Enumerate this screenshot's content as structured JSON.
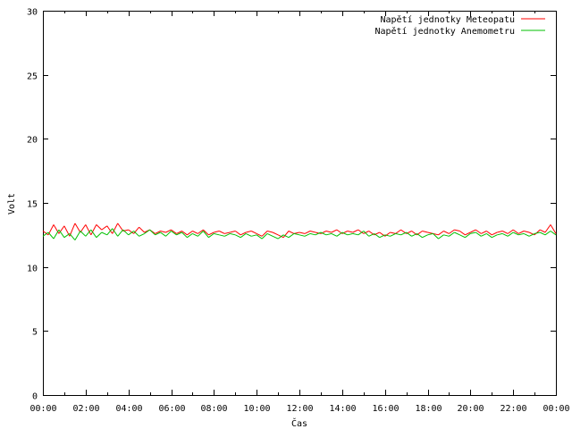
{
  "chart_data": {
    "type": "line",
    "title": "",
    "xlabel": "Čas",
    "ylabel": "Volt",
    "xlim": [
      0,
      24
    ],
    "ylim": [
      0,
      30
    ],
    "x_ticks": [
      {
        "value": 0,
        "label": "00:00"
      },
      {
        "value": 2,
        "label": "02:00"
      },
      {
        "value": 4,
        "label": "04:00"
      },
      {
        "value": 6,
        "label": "06:00"
      },
      {
        "value": 8,
        "label": "08:00"
      },
      {
        "value": 10,
        "label": "10:00"
      },
      {
        "value": 12,
        "label": "12:00"
      },
      {
        "value": 14,
        "label": "14:00"
      },
      {
        "value": 16,
        "label": "16:00"
      },
      {
        "value": 18,
        "label": "18:00"
      },
      {
        "value": 20,
        "label": "20:00"
      },
      {
        "value": 22,
        "label": "22:00"
      },
      {
        "value": 24,
        "label": "00:00"
      }
    ],
    "y_ticks": [
      {
        "value": 0,
        "label": "0"
      },
      {
        "value": 5,
        "label": "5"
      },
      {
        "value": 10,
        "label": "10"
      },
      {
        "value": 15,
        "label": "15"
      },
      {
        "value": 20,
        "label": "20"
      },
      {
        "value": 25,
        "label": "25"
      },
      {
        "value": 30,
        "label": "30"
      }
    ],
    "grid": false,
    "legend_position": "top-right",
    "x_units": "hours",
    "series": [
      {
        "name": "Napětí jednotky Meteopatu",
        "color": "#ff0000",
        "x": [
          0,
          0.25,
          0.5,
          0.75,
          1,
          1.25,
          1.5,
          1.75,
          2,
          2.25,
          2.5,
          2.75,
          3,
          3.25,
          3.5,
          3.75,
          4,
          4.25,
          4.5,
          4.75,
          5,
          5.25,
          5.5,
          5.75,
          6,
          6.25,
          6.5,
          6.75,
          7,
          7.25,
          7.5,
          7.75,
          8,
          8.25,
          8.5,
          8.75,
          9,
          9.25,
          9.5,
          9.75,
          10,
          10.25,
          10.5,
          10.75,
          11,
          11.25,
          11.5,
          11.75,
          12,
          12.25,
          12.5,
          12.75,
          13,
          13.25,
          13.5,
          13.75,
          14,
          14.25,
          14.5,
          14.75,
          15,
          15.25,
          15.5,
          15.75,
          16,
          16.25,
          16.5,
          16.75,
          17,
          17.25,
          17.5,
          17.75,
          18,
          18.25,
          18.5,
          18.75,
          19,
          19.25,
          19.5,
          19.75,
          20,
          20.25,
          20.5,
          20.75,
          21,
          21.25,
          21.5,
          21.75,
          22,
          22.25,
          22.5,
          22.75,
          23,
          23.25,
          23.5,
          23.75,
          24
        ],
        "values": [
          12.8,
          12.5,
          13.3,
          12.6,
          13.2,
          12.4,
          13.4,
          12.7,
          13.3,
          12.5,
          13.3,
          12.9,
          13.2,
          12.6,
          13.4,
          12.8,
          12.9,
          12.6,
          13.1,
          12.7,
          12.9,
          12.6,
          12.8,
          12.7,
          12.9,
          12.6,
          12.8,
          12.5,
          12.8,
          12.6,
          12.9,
          12.5,
          12.7,
          12.8,
          12.6,
          12.7,
          12.8,
          12.5,
          12.7,
          12.8,
          12.6,
          12.4,
          12.8,
          12.7,
          12.5,
          12.3,
          12.8,
          12.6,
          12.7,
          12.6,
          12.8,
          12.7,
          12.6,
          12.8,
          12.7,
          12.9,
          12.6,
          12.8,
          12.7,
          12.9,
          12.6,
          12.8,
          12.5,
          12.7,
          12.4,
          12.7,
          12.6,
          12.9,
          12.6,
          12.8,
          12.5,
          12.8,
          12.7,
          12.6,
          12.5,
          12.8,
          12.6,
          12.9,
          12.8,
          12.5,
          12.7,
          12.9,
          12.6,
          12.8,
          12.5,
          12.7,
          12.8,
          12.6,
          12.9,
          12.6,
          12.8,
          12.7,
          12.5,
          12.9,
          12.7,
          13.3,
          12.6
        ]
      },
      {
        "name": "Napětí jednotky Anemometru",
        "color": "#00c000",
        "x": [
          0,
          0.25,
          0.5,
          0.75,
          1,
          1.25,
          1.5,
          1.75,
          2,
          2.25,
          2.5,
          2.75,
          3,
          3.25,
          3.5,
          3.75,
          4,
          4.25,
          4.5,
          4.75,
          5,
          5.25,
          5.5,
          5.75,
          6,
          6.25,
          6.5,
          6.75,
          7,
          7.25,
          7.5,
          7.75,
          8,
          8.25,
          8.5,
          8.75,
          9,
          9.25,
          9.5,
          9.75,
          10,
          10.25,
          10.5,
          10.75,
          11,
          11.25,
          11.5,
          11.75,
          12,
          12.25,
          12.5,
          12.75,
          13,
          13.25,
          13.5,
          13.75,
          14,
          14.25,
          14.5,
          14.75,
          15,
          15.25,
          15.5,
          15.75,
          16,
          16.25,
          16.5,
          16.75,
          17,
          17.25,
          17.5,
          17.75,
          18,
          18.25,
          18.5,
          18.75,
          19,
          19.25,
          19.5,
          19.75,
          20,
          20.25,
          20.5,
          20.75,
          21,
          21.25,
          21.5,
          21.75,
          22,
          22.25,
          22.5,
          22.75,
          23,
          23.25,
          23.5,
          23.75,
          24
        ],
        "values": [
          12.4,
          12.7,
          12.2,
          12.9,
          12.3,
          12.6,
          12.1,
          12.8,
          12.4,
          12.9,
          12.3,
          12.7,
          12.5,
          13.0,
          12.4,
          12.9,
          12.5,
          12.8,
          12.4,
          12.6,
          12.9,
          12.5,
          12.7,
          12.4,
          12.8,
          12.5,
          12.7,
          12.3,
          12.6,
          12.4,
          12.8,
          12.3,
          12.6,
          12.5,
          12.4,
          12.6,
          12.5,
          12.3,
          12.6,
          12.4,
          12.5,
          12.2,
          12.6,
          12.4,
          12.2,
          12.5,
          12.3,
          12.6,
          12.5,
          12.4,
          12.6,
          12.5,
          12.7,
          12.5,
          12.6,
          12.4,
          12.7,
          12.5,
          12.6,
          12.5,
          12.8,
          12.4,
          12.6,
          12.3,
          12.5,
          12.4,
          12.6,
          12.5,
          12.7,
          12.4,
          12.6,
          12.3,
          12.5,
          12.6,
          12.2,
          12.5,
          12.4,
          12.7,
          12.5,
          12.3,
          12.6,
          12.7,
          12.4,
          12.6,
          12.3,
          12.5,
          12.6,
          12.4,
          12.7,
          12.5,
          12.6,
          12.4,
          12.6,
          12.7,
          12.5,
          12.8,
          12.5
        ]
      }
    ]
  }
}
